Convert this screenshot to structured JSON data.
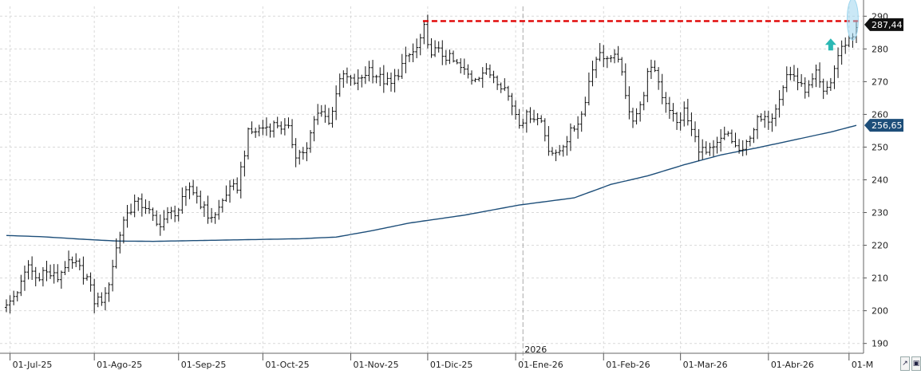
{
  "chart_data": {
    "type": "ohlc",
    "y_scale": {
      "min": 187,
      "max": 293
    },
    "y_ticks": [
      190,
      200,
      210,
      220,
      230,
      240,
      250,
      260,
      270,
      280,
      290
    ],
    "y_tick_labels": [
      "190",
      "200",
      "210",
      "220",
      "230",
      "240",
      "250",
      "260",
      "270",
      "280",
      "290"
    ],
    "x_ticks": [
      {
        "label": "01-Jul-25",
        "bar": 1
      },
      {
        "label": "01-Ago-25",
        "bar": 24
      },
      {
        "label": "01-Sep-25",
        "bar": 47
      },
      {
        "label": "01-Oct-25",
        "bar": 70
      },
      {
        "label": "01-Nov-25",
        "bar": 94
      },
      {
        "label": "01-Dic-25",
        "bar": 115
      },
      {
        "label": "01-Ene-26",
        "bar": 139
      },
      {
        "label": "01-Feb-26",
        "bar": 163
      },
      {
        "label": "01-Mar-26",
        "bar": 184
      },
      {
        "label": "01-Abr-26",
        "bar": 208
      },
      {
        "label": "01-M",
        "bar": 230
      }
    ],
    "year_marker": {
      "label": "2026",
      "bar": 141
    },
    "anchors": [
      [
        0,
        201
      ],
      [
        4,
        208
      ],
      [
        6,
        214
      ],
      [
        8,
        210
      ],
      [
        10,
        212
      ],
      [
        12,
        211
      ],
      [
        14,
        210
      ],
      [
        16,
        214
      ],
      [
        19,
        214
      ],
      [
        22,
        210
      ],
      [
        24,
        203
      ],
      [
        27,
        204
      ],
      [
        30,
        219
      ],
      [
        32,
        228
      ],
      [
        35,
        233
      ],
      [
        38,
        232
      ],
      [
        41,
        226
      ],
      [
        44,
        229
      ],
      [
        47,
        231
      ],
      [
        50,
        238
      ],
      [
        52,
        235
      ],
      [
        55,
        229
      ],
      [
        57,
        229
      ],
      [
        60,
        236
      ],
      [
        63,
        238
      ],
      [
        66,
        254
      ],
      [
        70,
        256
      ],
      [
        74,
        257
      ],
      [
        77,
        255
      ],
      [
        79,
        248
      ],
      [
        82,
        249
      ],
      [
        84,
        258
      ],
      [
        86,
        262
      ],
      [
        88,
        257
      ],
      [
        90,
        267
      ],
      [
        92,
        272
      ],
      [
        94,
        270
      ],
      [
        96,
        270
      ],
      [
        99,
        274
      ],
      [
        102,
        271
      ],
      [
        105,
        269
      ],
      [
        108,
        275
      ],
      [
        110,
        278
      ],
      [
        112,
        280
      ],
      [
        114,
        286
      ],
      [
        115,
        280
      ],
      [
        118,
        279
      ],
      [
        121,
        277
      ],
      [
        124,
        274
      ],
      [
        127,
        271
      ],
      [
        130,
        273
      ],
      [
        133,
        272
      ],
      [
        136,
        268
      ],
      [
        138,
        263
      ],
      [
        140,
        258
      ],
      [
        143,
        260
      ],
      [
        146,
        258
      ],
      [
        148,
        250
      ],
      [
        150,
        247
      ],
      [
        152,
        251
      ],
      [
        155,
        256
      ],
      [
        157,
        260
      ],
      [
        159,
        270
      ],
      [
        161,
        278
      ],
      [
        163,
        278
      ],
      [
        165,
        276
      ],
      [
        167,
        278
      ],
      [
        169,
        265
      ],
      [
        171,
        259
      ],
      [
        173,
        262
      ],
      [
        175,
        272
      ],
      [
        177,
        274
      ],
      [
        179,
        266
      ],
      [
        181,
        262
      ],
      [
        183,
        257
      ],
      [
        185,
        261
      ],
      [
        187,
        255
      ],
      [
        189,
        250
      ],
      [
        191,
        248
      ],
      [
        193,
        249
      ],
      [
        195,
        252
      ],
      [
        197,
        254
      ],
      [
        199,
        250
      ],
      [
        201,
        248
      ],
      [
        203,
        254
      ],
      [
        205,
        258
      ],
      [
        207,
        258
      ],
      [
        209,
        260
      ],
      [
        211,
        266
      ],
      [
        213,
        272
      ],
      [
        215,
        272
      ],
      [
        217,
        268
      ],
      [
        219,
        268
      ],
      [
        221,
        272
      ],
      [
        223,
        266
      ],
      [
        225,
        270
      ],
      [
        227,
        278
      ],
      [
        229,
        282
      ],
      [
        231,
        284
      ],
      [
        232,
        287.44
      ]
    ],
    "moving_average": [
      [
        0,
        223
      ],
      [
        10,
        222.6
      ],
      [
        20,
        221.9
      ],
      [
        30,
        221.3
      ],
      [
        40,
        221.2
      ],
      [
        60,
        221.6
      ],
      [
        80,
        222.0
      ],
      [
        90,
        222.5
      ],
      [
        100,
        224.5
      ],
      [
        110,
        226.8
      ],
      [
        125,
        229.2
      ],
      [
        140,
        232.3
      ],
      [
        155,
        234.5
      ],
      [
        165,
        238.6
      ],
      [
        175,
        241.2
      ],
      [
        185,
        244.6
      ],
      [
        195,
        247.6
      ],
      [
        205,
        249.8
      ],
      [
        215,
        252.2
      ],
      [
        225,
        254.6
      ],
      [
        232,
        256.65
      ]
    ],
    "resistance_level": 288.5,
    "resistance_from_bar": 115,
    "last_close": 287.44,
    "last_ma": 256.65,
    "last_close_label": "287,44",
    "last_ma_label": "256,65",
    "colors": {
      "bars": "#111111",
      "moving_average": "#1d4e79",
      "resistance": "#e00000",
      "arrow": "#2bb8b4",
      "highlight": "#9fd6ee",
      "close_tag": "#111111",
      "ma_tag": "#1d4e79",
      "grid": "#d9d9d9"
    },
    "arrow_marker": {
      "bar": 225,
      "value": 281
    },
    "highlight_marker": {
      "bar": 231,
      "value": 289
    }
  },
  "toolbar": {
    "buttons": [
      {
        "name": "cursor-icon",
        "glyph": "↗"
      },
      {
        "name": "save-icon",
        "glyph": "▣"
      }
    ]
  }
}
